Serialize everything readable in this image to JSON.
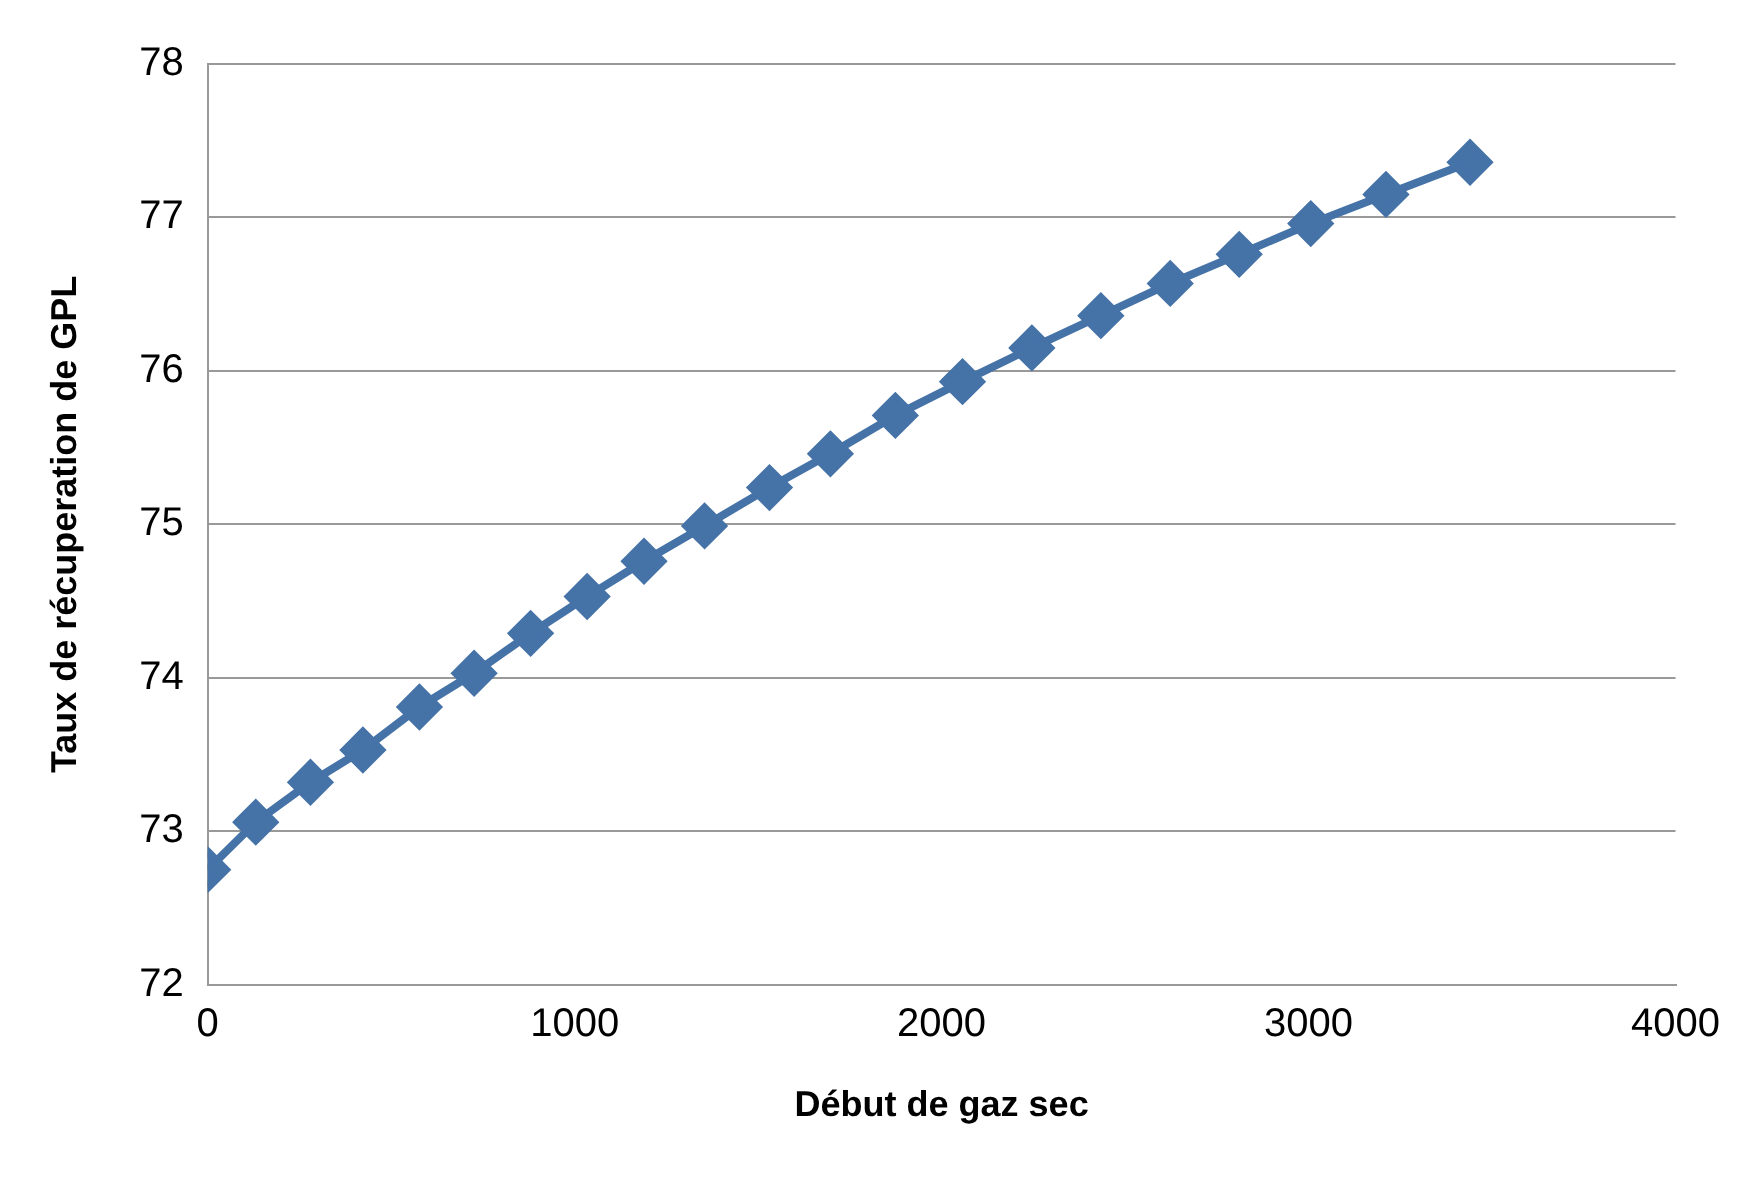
{
  "chart_data": {
    "type": "line",
    "xlabel": "Début de gaz sec",
    "ylabel": "Taux de récuperation de GPL",
    "x": [
      0,
      131,
      280,
      423,
      577,
      726,
      880,
      1034,
      1189,
      1354,
      1531,
      1697,
      1874,
      2057,
      2246,
      2434,
      2623,
      2811,
      3006,
      3211,
      3440
    ],
    "series": [
      {
        "color": "#4572a7",
        "values": [
          72.75,
          73.06,
          73.32,
          73.53,
          73.81,
          74.03,
          74.29,
          74.53,
          74.76,
          74.99,
          75.24,
          75.46,
          75.71,
          75.93,
          76.15,
          76.36,
          76.57,
          76.76,
          76.96,
          77.15,
          77.36
        ]
      }
    ],
    "xlim": [
      0,
      4000
    ],
    "xticks": [
      0,
      1000,
      2000,
      3000,
      4000
    ],
    "ylim": [
      72,
      78
    ],
    "yticks": [
      72,
      73,
      74,
      75,
      76,
      77,
      78
    ],
    "grid": "y",
    "legend": false,
    "marker": "diamond",
    "line_style": "solid"
  }
}
